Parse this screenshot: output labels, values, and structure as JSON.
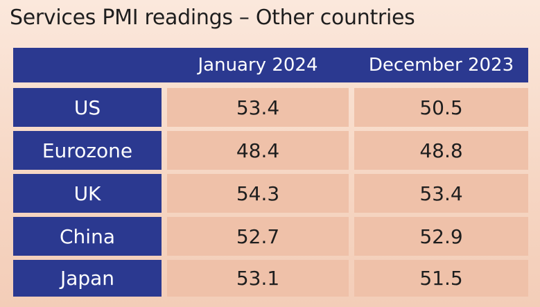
{
  "title": "Services PMI readings – Other countries",
  "chart_data": {
    "type": "table",
    "title": "Services PMI readings – Other countries",
    "columns": [
      "",
      "January 2024",
      "December 2023"
    ],
    "rows": [
      {
        "label": "US",
        "values": [
          "53.4",
          "50.5"
        ]
      },
      {
        "label": "Eurozone",
        "values": [
          "48.4",
          "48.8"
        ]
      },
      {
        "label": "UK",
        "values": [
          "54.3",
          "53.4"
        ]
      },
      {
        "label": "China",
        "values": [
          "52.7",
          "52.9"
        ]
      },
      {
        "label": "Japan",
        "values": [
          "53.1",
          "51.5"
        ]
      }
    ]
  },
  "colors": {
    "header_bg": "#2b3990",
    "cell_bg": "#efc1a9",
    "page_bg": "#f6d6c3"
  }
}
